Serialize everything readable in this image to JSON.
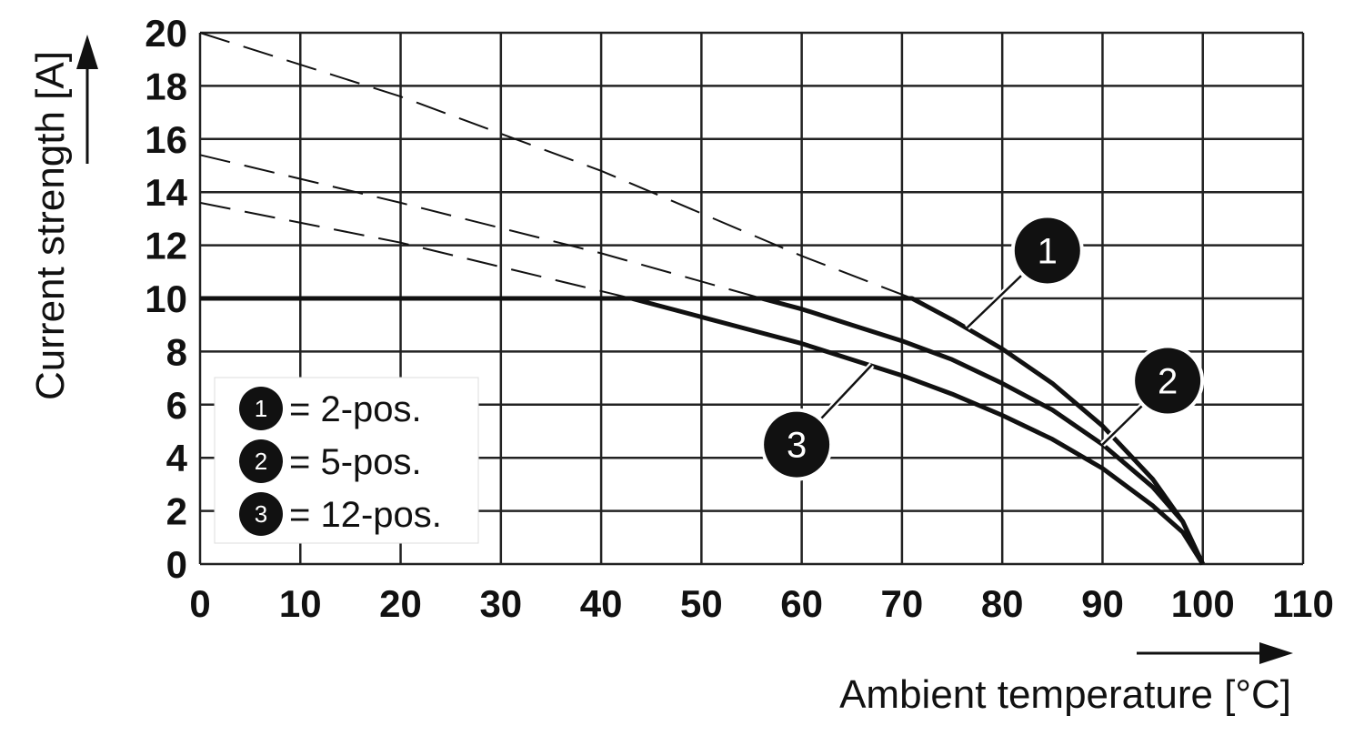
{
  "chart_data": {
    "type": "line",
    "title": "",
    "xlabel": "Ambient temperature [°C]",
    "ylabel": "Current strength [A]",
    "xlim": [
      0,
      110
    ],
    "ylim": [
      0,
      20
    ],
    "x_ticks": [
      "0",
      "10",
      "20",
      "30",
      "40",
      "50",
      "60",
      "70",
      "80",
      "90",
      "100",
      "110"
    ],
    "y_ticks": [
      "0",
      "2",
      "4",
      "6",
      "8",
      "10",
      "12",
      "14",
      "16",
      "18",
      "20"
    ],
    "grid": true,
    "legend_position": "bottom-left",
    "legend": [
      {
        "marker": "1",
        "text": "= 2-pos."
      },
      {
        "marker": "2",
        "text": "= 5-pos."
      },
      {
        "marker": "3",
        "text": "= 12-pos."
      }
    ],
    "series": [
      {
        "name": "1",
        "style": "solid",
        "x": [
          0,
          71,
          75,
          80,
          85,
          90,
          95,
          98,
          100
        ],
        "y": [
          10,
          10,
          9.2,
          8.1,
          6.8,
          5.2,
          3.2,
          1.6,
          0
        ]
      },
      {
        "name": "2",
        "style": "solid",
        "x": [
          0,
          56,
          60,
          65,
          70,
          75,
          80,
          85,
          90,
          95,
          98,
          100
        ],
        "y": [
          10,
          10,
          9.6,
          9.0,
          8.4,
          7.7,
          6.8,
          5.8,
          4.5,
          2.9,
          1.6,
          0
        ]
      },
      {
        "name": "3",
        "style": "solid",
        "x": [
          0,
          43,
          50,
          55,
          60,
          65,
          70,
          75,
          80,
          85,
          90,
          95,
          98,
          100
        ],
        "y": [
          10,
          10,
          9.3,
          8.8,
          8.3,
          7.7,
          7.1,
          6.4,
          5.6,
          4.7,
          3.6,
          2.2,
          1.2,
          0
        ]
      },
      {
        "name": "1",
        "style": "dashed",
        "x": [
          0,
          20,
          40,
          60,
          71
        ],
        "y": [
          20,
          17.6,
          14.8,
          11.6,
          10
        ]
      },
      {
        "name": "2",
        "style": "dashed",
        "x": [
          0,
          20,
          40,
          56
        ],
        "y": [
          15.4,
          13.6,
          11.7,
          10
        ]
      },
      {
        "name": "3",
        "style": "dashed",
        "x": [
          0,
          20,
          43
        ],
        "y": [
          13.6,
          12.1,
          10
        ]
      }
    ],
    "annotations": [
      {
        "label": "1",
        "x": 84.5,
        "y": 11.8,
        "leader_to": {
          "x": 76.5,
          "y": 8.9
        }
      },
      {
        "label": "2",
        "x": 96.5,
        "y": 6.9,
        "leader_to": {
          "x": 90,
          "y": 4.5
        }
      },
      {
        "label": "3",
        "x": 59.5,
        "y": 4.5,
        "leader_to": {
          "x": 67,
          "y": 7.5
        }
      }
    ]
  }
}
